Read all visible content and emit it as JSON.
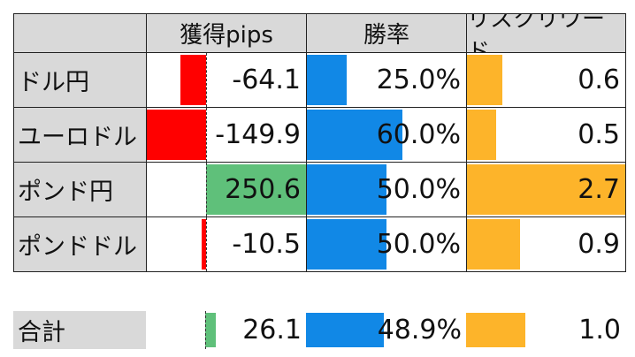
{
  "colors": {
    "header_bg": "#d9d9d9",
    "negative_bar": "#ff0000",
    "positive_bar": "#5fc07a",
    "win_rate_bar": "#1188e6",
    "risk_reward_bar": "#fdb42a"
  },
  "headers": {
    "pips": "獲得pips",
    "win_rate": "勝率",
    "risk_reward": "リスクリワード"
  },
  "rows": [
    {
      "label": "ドル円",
      "pips": "-64.1",
      "pips_value": -64.1,
      "win_rate": "25.0%",
      "win_rate_value": 25.0,
      "risk_reward": "0.6",
      "risk_reward_value": 0.6
    },
    {
      "label": "ユーロドル",
      "pips": "-149.9",
      "pips_value": -149.9,
      "win_rate": "60.0%",
      "win_rate_value": 60.0,
      "risk_reward": "0.5",
      "risk_reward_value": 0.5
    },
    {
      "label": "ポンド円",
      "pips": "250.6",
      "pips_value": 250.6,
      "win_rate": "50.0%",
      "win_rate_value": 50.0,
      "risk_reward": "2.7",
      "risk_reward_value": 2.7
    },
    {
      "label": "ポンドドル",
      "pips": "-10.5",
      "pips_value": -10.5,
      "win_rate": "50.0%",
      "win_rate_value": 50.0,
      "risk_reward": "0.9",
      "risk_reward_value": 0.9
    }
  ],
  "total": {
    "label": "合計",
    "pips": "26.1",
    "pips_value": 26.1,
    "win_rate": "48.9%",
    "win_rate_value": 48.9,
    "risk_reward": "1.0",
    "risk_reward_value": 1.0
  }
}
